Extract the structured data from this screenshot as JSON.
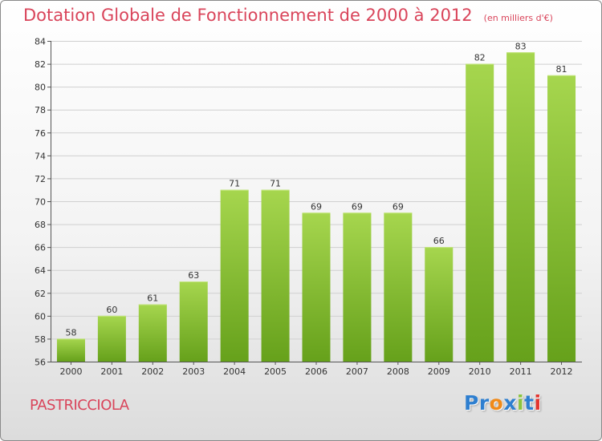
{
  "title": "Dotation Globale de Fonctionnement de 2000 à 2012",
  "unit_note": "(en milliers d'€)",
  "commune": "PASTRICCIOLA",
  "logo": {
    "letters": [
      "P",
      "r",
      "o",
      "x",
      "i",
      "t",
      "i"
    ],
    "colors": [
      "#2e7fd0",
      "#2e7fd0",
      "#f08a1a",
      "#2e7fd0",
      "#8bc43f",
      "#2e7fd0",
      "#e3342f"
    ]
  },
  "colors": {
    "bar_top": "#a6d64e",
    "bar_bottom": "#66a11b",
    "grid": "#d0d0d0",
    "title": "#d9445a"
  },
  "chart_data": {
    "type": "bar",
    "categories": [
      "2000",
      "2001",
      "2002",
      "2003",
      "2004",
      "2005",
      "2006",
      "2007",
      "2008",
      "2009",
      "2010",
      "2011",
      "2012"
    ],
    "values": [
      58,
      60,
      61,
      63,
      71,
      71,
      69,
      69,
      69,
      66,
      82,
      83,
      81
    ],
    "ylim": [
      56,
      84
    ],
    "yticks": [
      56,
      58,
      60,
      62,
      64,
      66,
      68,
      70,
      72,
      74,
      76,
      78,
      80,
      82,
      84
    ],
    "grid": true,
    "xlabel": "",
    "ylabel": ""
  }
}
